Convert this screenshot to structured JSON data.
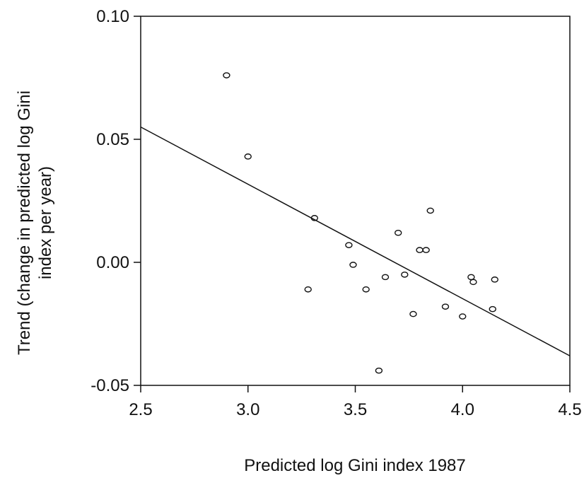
{
  "chart_data": {
    "type": "scatter",
    "title": "",
    "xlabel": "Predicted log Gini index 1987",
    "ylabel_lines": [
      "Trend (change in predicted log Gini",
      "index per year)"
    ],
    "xlim": [
      2.5,
      4.5
    ],
    "ylim": [
      -0.05,
      0.1
    ],
    "x_ticks": [
      {
        "value": 2.5,
        "label": "2.5"
      },
      {
        "value": 3.0,
        "label": "3.0"
      },
      {
        "value": 3.5,
        "label": "3.5"
      },
      {
        "value": 4.0,
        "label": "4.0"
      },
      {
        "value": 4.5,
        "label": "4.5"
      }
    ],
    "y_ticks": [
      {
        "value": 0.1,
        "label": "0.10"
      },
      {
        "value": 0.05,
        "label": "0.05"
      },
      {
        "value": 0.0,
        "label": "0.00"
      },
      {
        "value": -0.05,
        "label": "-0.05"
      }
    ],
    "grid": false,
    "legend": "none",
    "points": [
      {
        "x": 2.9,
        "y": 0.076
      },
      {
        "x": 3.0,
        "y": 0.043
      },
      {
        "x": 3.31,
        "y": 0.018
      },
      {
        "x": 3.28,
        "y": -0.011
      },
      {
        "x": 3.47,
        "y": 0.007
      },
      {
        "x": 3.49,
        "y": -0.001
      },
      {
        "x": 3.55,
        "y": -0.011
      },
      {
        "x": 3.61,
        "y": -0.044
      },
      {
        "x": 3.64,
        "y": -0.006
      },
      {
        "x": 3.7,
        "y": 0.012
      },
      {
        "x": 3.73,
        "y": -0.005
      },
      {
        "x": 3.77,
        "y": -0.021
      },
      {
        "x": 3.8,
        "y": 0.005
      },
      {
        "x": 3.83,
        "y": 0.005
      },
      {
        "x": 3.85,
        "y": 0.021
      },
      {
        "x": 3.92,
        "y": -0.018
      },
      {
        "x": 4.0,
        "y": -0.022
      },
      {
        "x": 4.04,
        "y": -0.006
      },
      {
        "x": 4.05,
        "y": -0.008
      },
      {
        "x": 4.14,
        "y": -0.019
      },
      {
        "x": 4.15,
        "y": -0.007
      }
    ],
    "fit_line": {
      "x": [
        2.5,
        4.5
      ],
      "y": [
        0.055,
        -0.038
      ]
    },
    "colors": {
      "marker": "#111111",
      "line": "#111111",
      "background": "#ffffff"
    }
  }
}
